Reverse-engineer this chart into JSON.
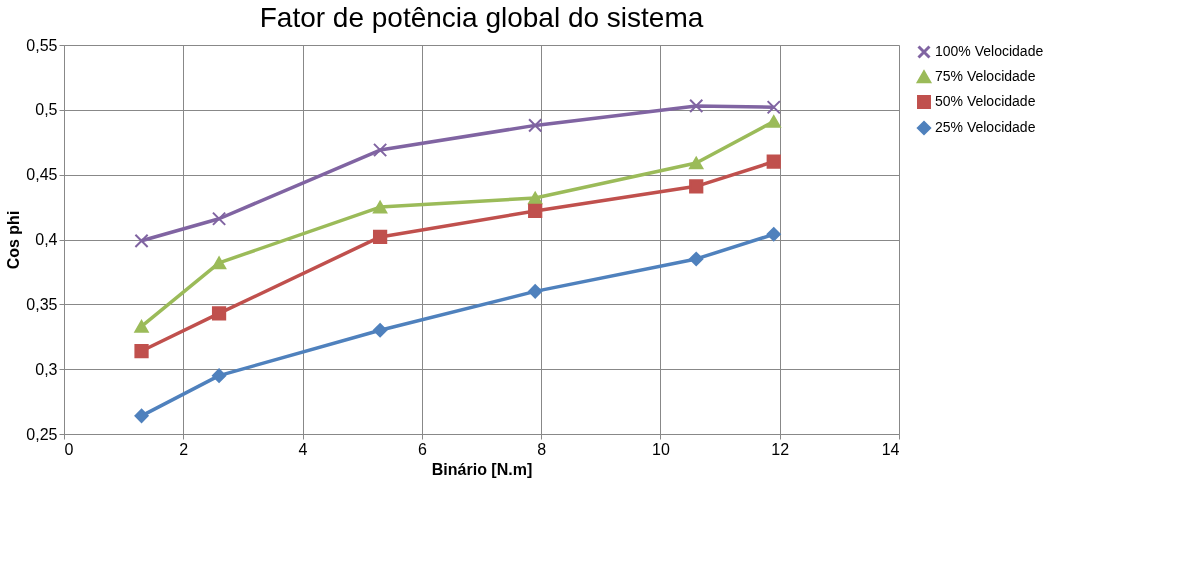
{
  "chart_data": {
    "type": "line",
    "title": "Fator de potência global do sistema",
    "xlabel": "Binário [N.m]",
    "ylabel": "Cos phi",
    "xlim": [
      0,
      14
    ],
    "xticks": [
      0,
      2,
      4,
      6,
      8,
      10,
      12,
      14
    ],
    "ylim": [
      0.25,
      0.55
    ],
    "yticks": [
      {
        "value": 0.25,
        "label": "0,25"
      },
      {
        "value": 0.3,
        "label": "0,3"
      },
      {
        "value": 0.35,
        "label": "0,35"
      },
      {
        "value": 0.4,
        "label": "0,4"
      },
      {
        "value": 0.45,
        "label": "0,45"
      },
      {
        "value": 0.5,
        "label": "0,5"
      },
      {
        "value": 0.55,
        "label": "0,55"
      }
    ],
    "x": [
      1.3,
      2.6,
      5.3,
      7.9,
      10.6,
      11.9
    ],
    "grid": true,
    "legend": "right",
    "line_style": "solid",
    "series": [
      {
        "name": "100% Velocidade",
        "color": "#8064a2",
        "marker": "cross",
        "values": [
          0.399,
          0.416,
          0.469,
          0.488,
          0.503,
          0.502
        ]
      },
      {
        "name": "75% Velocidade",
        "color": "#9bbb59",
        "marker": "triangle",
        "values": [
          0.333,
          0.382,
          0.425,
          0.432,
          0.459,
          0.491
        ]
      },
      {
        "name": "50% Velocidade",
        "color": "#c0504d",
        "marker": "square",
        "values": [
          0.314,
          0.343,
          0.402,
          0.422,
          0.441,
          0.46
        ]
      },
      {
        "name": "25% Velocidade",
        "color": "#4f81bd",
        "marker": "diamond",
        "values": [
          0.264,
          0.295,
          0.33,
          0.36,
          0.385,
          0.404
        ]
      }
    ]
  }
}
